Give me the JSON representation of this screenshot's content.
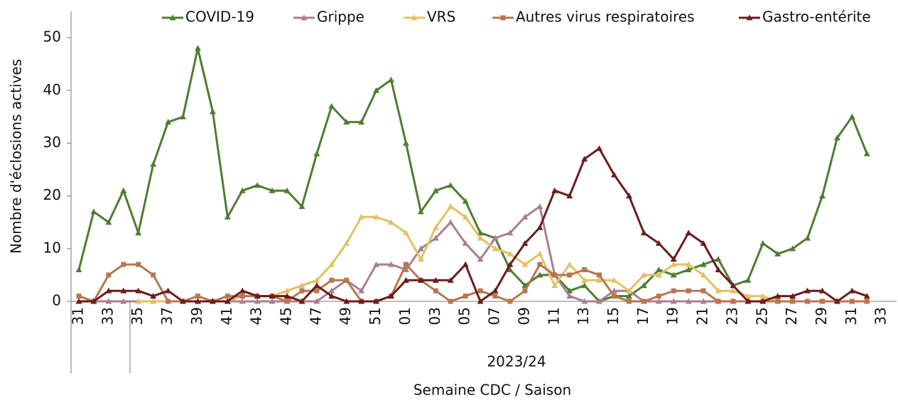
{
  "chart_data": {
    "type": "line",
    "y_label": "Nombre d'éclosions actives",
    "x_label": "Semaine CDC / Saison",
    "group_label": "2023/24",
    "categories": [
      "31",
      null,
      "33",
      null,
      "35",
      null,
      "37",
      null,
      "39",
      null,
      "41",
      null,
      "43",
      null,
      "45",
      null,
      "47",
      null,
      "49",
      null,
      "51",
      null,
      "01",
      null,
      "03",
      null,
      "05",
      null,
      "07",
      null,
      "09",
      null,
      "11",
      null,
      "13",
      null,
      "15",
      null,
      "17",
      null,
      "19",
      null,
      "21",
      null,
      "23",
      null,
      "25",
      null,
      "27",
      null,
      "29",
      null,
      "31",
      null,
      "33"
    ],
    "ylim": [
      0,
      55
    ],
    "yticks": [
      0,
      10,
      20,
      30,
      40,
      50
    ],
    "grid": false,
    "legend": "top",
    "series": [
      {
        "name": "COVID-19",
        "color": "#4e7d31",
        "marker": "triangle",
        "values": [
          6,
          17,
          15,
          21,
          13,
          26,
          34,
          35,
          48,
          36,
          16,
          21,
          22,
          21,
          21,
          18,
          28,
          37,
          34,
          34,
          40,
          42,
          30,
          17,
          21,
          22,
          19,
          13,
          12,
          6,
          3,
          5,
          5,
          2,
          3,
          0,
          1,
          1,
          3,
          6,
          5,
          6,
          7,
          8,
          3,
          4,
          11,
          9,
          10,
          12,
          20,
          31,
          35,
          28,
          null
        ]
      },
      {
        "name": "Grippe",
        "color": "#a7818e",
        "marker": "triangle",
        "values": [
          0,
          0,
          0,
          0,
          0,
          0,
          0,
          0,
          0,
          0,
          0,
          0,
          0,
          0,
          0,
          0,
          0,
          2,
          4,
          2,
          7,
          7,
          6,
          10,
          12,
          15,
          11,
          8,
          12,
          13,
          16,
          18,
          5,
          1,
          0,
          0,
          2,
          2,
          0,
          0,
          0,
          0,
          0,
          0,
          0,
          0,
          0,
          0,
          0,
          0,
          0,
          0,
          0,
          0,
          null
        ]
      },
      {
        "name": "VRS",
        "color": "#e3c164",
        "marker": "triangle",
        "values": [
          null,
          null,
          null,
          null,
          0,
          0,
          0,
          0,
          0,
          0,
          0,
          1,
          1,
          1,
          2,
          3,
          4,
          7,
          11,
          16,
          16,
          15,
          13,
          8,
          14,
          18,
          16,
          12,
          10,
          9,
          7,
          9,
          3,
          7,
          4,
          4,
          4,
          2,
          5,
          5,
          7,
          7,
          5,
          2,
          2,
          1,
          1,
          0,
          0,
          0,
          0,
          0,
          0,
          0,
          null
        ]
      },
      {
        "name": "Autres virus respiratoires",
        "color": "#b87650",
        "marker": "square",
        "values": [
          1,
          0,
          5,
          7,
          7,
          5,
          0,
          0,
          1,
          0,
          1,
          1,
          1,
          1,
          0,
          2,
          2,
          4,
          4,
          0,
          0,
          1,
          7,
          4,
          2,
          0,
          1,
          2,
          1,
          0,
          2,
          7,
          5,
          5,
          6,
          5,
          1,
          0,
          0,
          1,
          2,
          2,
          2,
          0,
          0,
          0,
          0,
          0,
          0,
          0,
          0,
          0,
          0,
          0,
          null
        ]
      },
      {
        "name": "Gastro-entérite",
        "color": "#6b1c1c",
        "marker": "triangle",
        "values": [
          0,
          0,
          2,
          2,
          2,
          1,
          2,
          0,
          0,
          0,
          0,
          2,
          1,
          1,
          1,
          0,
          3,
          1,
          0,
          0,
          0,
          1,
          4,
          4,
          4,
          4,
          7,
          0,
          2,
          7,
          11,
          14,
          21,
          20,
          27,
          29,
          24,
          20,
          13,
          11,
          8,
          13,
          11,
          6,
          3,
          0,
          0,
          1,
          1,
          2,
          2,
          0,
          2,
          1,
          null
        ]
      }
    ]
  }
}
